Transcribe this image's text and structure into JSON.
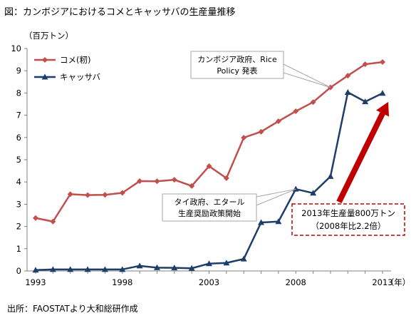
{
  "header": {
    "title": "図：カンボジアにおけるコメとキャッサバの生産量推移",
    "unit": "（百万トン）"
  },
  "footer": {
    "source": "出所：FAOSTATより大和総研作成"
  },
  "chart_data": {
    "type": "line",
    "title": "図：カンボジアにおけるコメとキャッサバの生産量推移",
    "ylabel": "（百万トン）",
    "xunit": "（年）",
    "ylim": [
      0,
      10
    ],
    "xlim": [
      1993,
      2013
    ],
    "x_tick_labels": [
      "1993",
      "1998",
      "2003",
      "2008",
      "2013"
    ],
    "y_tick_labels": [
      "0",
      "1",
      "2",
      "3",
      "4",
      "5",
      "6",
      "7",
      "8",
      "9",
      "10"
    ],
    "grid": false,
    "legend_position": "top-left",
    "x": [
      1993,
      1994,
      1995,
      1996,
      1997,
      1998,
      1999,
      2000,
      2001,
      2002,
      2003,
      2004,
      2005,
      2006,
      2007,
      2008,
      2009,
      2010,
      2011,
      2012,
      2013
    ],
    "series": [
      {
        "name": "コメ(籾)",
        "color": "#c0504d",
        "marker": "diamond",
        "values": [
          2.38,
          2.22,
          3.45,
          3.41,
          3.42,
          3.51,
          4.04,
          4.03,
          4.1,
          3.82,
          4.71,
          4.17,
          5.99,
          6.26,
          6.73,
          7.18,
          7.59,
          8.25,
          8.78,
          9.29,
          9.39
        ]
      },
      {
        "name": "キャッサバ",
        "color": "#1f3d6b",
        "marker": "triangle",
        "values": [
          0.04,
          0.07,
          0.07,
          0.07,
          0.07,
          0.07,
          0.23,
          0.15,
          0.14,
          0.12,
          0.33,
          0.36,
          0.54,
          2.18,
          2.22,
          3.68,
          3.5,
          4.25,
          8.03,
          7.61,
          7.99
        ]
      }
    ],
    "annotations": [
      {
        "name": "rice-policy",
        "lines": [
          "カンボジア政府、Rice",
          "Policy 発表"
        ],
        "target_x": 2010,
        "target_series": 0
      },
      {
        "name": "thai-policy",
        "lines": [
          "タイ政府、エタール",
          "生産奨励政策開始"
        ],
        "target_x": 2008,
        "target_series": 1
      }
    ],
    "highlight_box": {
      "lines": [
        "2013年生産量800万トン",
        "（2008年比2.2倍）"
      ],
      "color": "#c00000"
    },
    "trend_arrow": {
      "color": "#c00000",
      "from_x": 2010,
      "from_y": 3.1,
      "to_x": 2013,
      "to_y": 7.6
    }
  }
}
